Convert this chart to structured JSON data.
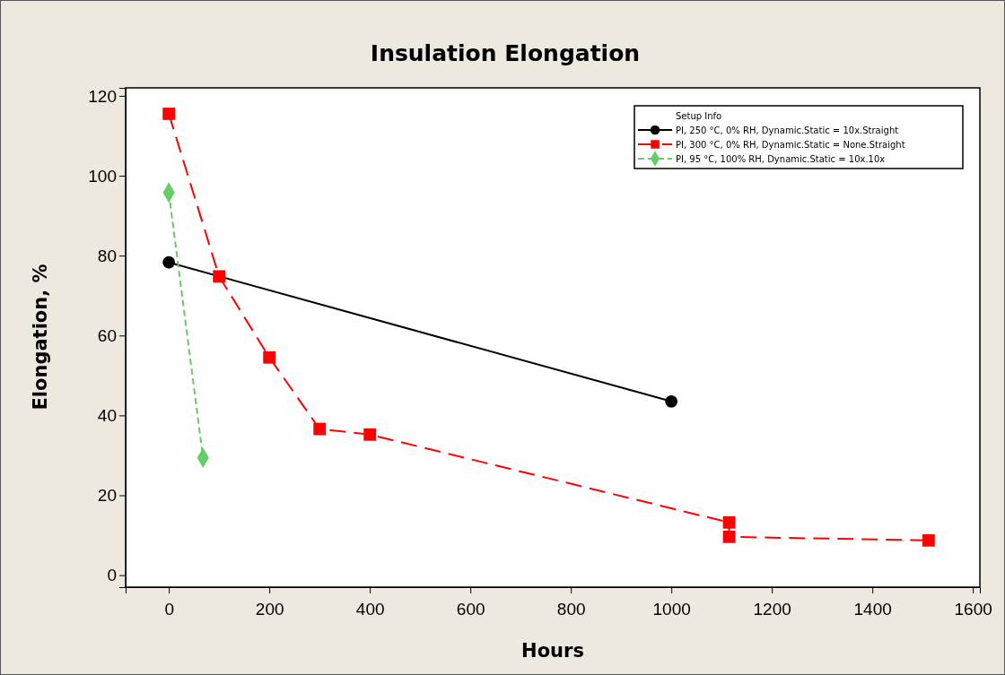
{
  "chart_data": {
    "type": "line",
    "title": "Insulation Elongation",
    "xlabel": "Hours",
    "ylabel": "Elongation, %",
    "legend_title": "Setup Info",
    "xlim": [
      -86,
      1614
    ],
    "xticks": [
      0,
      200,
      400,
      600,
      800,
      1000,
      1200,
      1400,
      1600
    ],
    "ylim": [
      -3,
      122
    ],
    "yticks": [
      0,
      20,
      40,
      60,
      80,
      100,
      120
    ],
    "grid": false,
    "legend": "top right",
    "series": [
      {
        "name": "PI,  250 °C,  0% RH,  Dynamic.Static = 10x.Straight",
        "color": "#000000",
        "marker": "circle",
        "line_style": "solid",
        "x": [
          0,
          1000
        ],
        "values": [
          78.3,
          43.5
        ]
      },
      {
        "name": "PI,  300 °C,  0% RH,  Dynamic.Static = None.Straight",
        "color": "#ff0000",
        "marker": "square",
        "line_style": "dashed",
        "x": [
          0,
          100,
          200,
          300,
          400,
          1115,
          1115,
          1512
        ],
        "values": [
          115.5,
          74.8,
          54.5,
          36.6,
          35.2,
          13.2,
          9.6,
          8.7
        ]
      },
      {
        "name": "PI,  95 °C,  100% RH,  Dynamic.Static = 10x.10x",
        "color": "#66cc66",
        "marker": "diamond",
        "line_style": "dotted",
        "x": [
          0,
          68
        ],
        "values": [
          95.8,
          29.4
        ]
      }
    ]
  }
}
